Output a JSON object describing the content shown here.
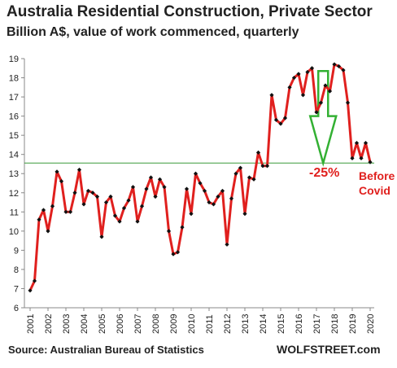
{
  "chart_data": {
    "type": "line",
    "title": "Australia Residential Construction,  Private Sector",
    "subtitle": "Billion A$, value of work commenced, quarterly",
    "xlabel": "",
    "ylabel": "",
    "x_tick_labels": [
      "2001",
      "2002",
      "2003",
      "2004",
      "2005",
      "2006",
      "2007",
      "2008",
      "2009",
      "2010",
      "2011",
      "2012",
      "2013",
      "2014",
      "2015",
      "2016",
      "2017",
      "2018",
      "2019",
      "2020"
    ],
    "y_tick_labels": [
      "6",
      "7",
      "8",
      "9",
      "10",
      "11",
      "12",
      "13",
      "14",
      "15",
      "16",
      "17",
      "18",
      "19"
    ],
    "ylim": [
      6,
      19
    ],
    "xlim": [
      2001,
      2020
    ],
    "grid": false,
    "series": [
      {
        "x": [
          2001.0,
          2001.25,
          2001.5,
          2001.75,
          2002.0,
          2002.25,
          2002.5,
          2002.75,
          2003.0,
          2003.25,
          2003.5,
          2003.75,
          2004.0,
          2004.25,
          2004.5,
          2004.75,
          2005.0,
          2005.25,
          2005.5,
          2005.75,
          2006.0,
          2006.25,
          2006.5,
          2006.75,
          2007.0,
          2007.25,
          2007.5,
          2007.75,
          2008.0,
          2008.25,
          2008.5,
          2008.75,
          2009.0,
          2009.25,
          2009.5,
          2009.75,
          2010.0,
          2010.25,
          2010.5,
          2010.75,
          2011.0,
          2011.25,
          2011.5,
          2011.75,
          2012.0,
          2012.25,
          2012.5,
          2012.75,
          2013.0,
          2013.25,
          2013.5,
          2013.75,
          2014.0,
          2014.25,
          2014.5,
          2014.75,
          2015.0,
          2015.25,
          2015.5,
          2015.75,
          2016.0,
          2016.25,
          2016.5,
          2016.75,
          2017.0,
          2017.25,
          2017.5,
          2017.75,
          2018.0,
          2018.25,
          2018.5,
          2018.75,
          2019.0,
          2019.25,
          2019.5,
          2019.75,
          2020.0
        ],
        "values": [
          6.9,
          7.4,
          10.6,
          11.1,
          10.0,
          11.3,
          13.1,
          12.6,
          11.0,
          11.0,
          12.0,
          13.2,
          11.4,
          12.1,
          12.0,
          11.8,
          9.7,
          11.5,
          11.8,
          10.8,
          10.5,
          11.2,
          11.6,
          12.3,
          10.5,
          11.3,
          12.2,
          12.8,
          11.8,
          12.7,
          12.3,
          10.0,
          8.8,
          8.9,
          10.2,
          12.2,
          10.9,
          13.0,
          12.5,
          12.1,
          11.5,
          11.4,
          11.8,
          12.1,
          9.3,
          11.7,
          13.0,
          13.3,
          10.9,
          12.8,
          12.7,
          14.1,
          13.4,
          13.4,
          17.1,
          15.8,
          15.6,
          15.9,
          17.5,
          18.0,
          18.2,
          17.1,
          18.3,
          18.5,
          16.2,
          16.7,
          17.6,
          17.3,
          18.7,
          18.6,
          18.4,
          16.7,
          13.8,
          14.6,
          13.8,
          14.6,
          13.6
        ]
      }
    ],
    "reference_line": 13.55,
    "annotations": {
      "drop_label": "-25%",
      "before_label": "Before",
      "covid_label": "Covid"
    },
    "colors": {
      "line": "#e0201e",
      "marker": "#111111",
      "reference": "#3a9a3a",
      "arrow": "#33b033",
      "axis": "#888888"
    }
  },
  "footer": {
    "source": "Source: Australian Bureau of Statistics",
    "brand": "WOLFSTREET.com"
  }
}
